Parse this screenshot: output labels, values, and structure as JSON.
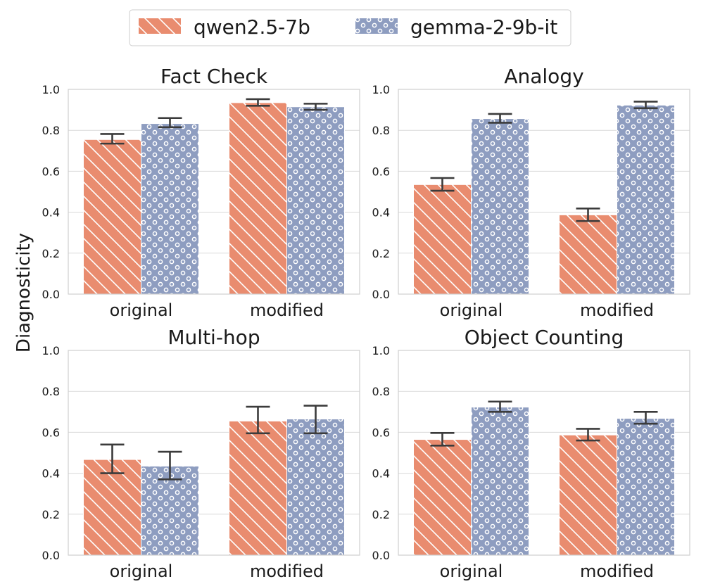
{
  "colors": {
    "qwen": "#e98c6f",
    "gemma": "#8e9dc0",
    "hatch": "#ffffff",
    "errorbar": "#3b3b3b"
  },
  "legend": [
    {
      "name": "qwen2.5-7b",
      "pattern": "diagonal-hatch"
    },
    {
      "name": "gemma-2-9b-it",
      "pattern": "circles"
    }
  ],
  "figure": {
    "ylabel": "Diagnosticity"
  },
  "chart_data": [
    {
      "type": "bar",
      "title": "Fact Check",
      "categories": [
        "original",
        "modified"
      ],
      "ylim": [
        0,
        1.0
      ],
      "yticks": [
        "0.0",
        "0.2",
        "0.4",
        "0.6",
        "0.8",
        "1.0"
      ],
      "series": [
        {
          "name": "qwen2.5-7b",
          "values": [
            0.755,
            0.935
          ],
          "err_low": [
            0.735,
            0.92
          ],
          "err_high": [
            0.782,
            0.952
          ]
        },
        {
          "name": "gemma-2-9b-it",
          "values": [
            0.833,
            0.915
          ],
          "err_low": [
            0.815,
            0.9
          ],
          "err_high": [
            0.86,
            0.93
          ]
        }
      ]
    },
    {
      "type": "bar",
      "title": "Analogy",
      "categories": [
        "original",
        "modified"
      ],
      "ylim": [
        0,
        1.0
      ],
      "yticks": [
        "0.0",
        "0.2",
        "0.4",
        "0.6",
        "0.8",
        "1.0"
      ],
      "series": [
        {
          "name": "qwen2.5-7b",
          "values": [
            0.535,
            0.387
          ],
          "err_low": [
            0.505,
            0.357
          ],
          "err_high": [
            0.567,
            0.418
          ]
        },
        {
          "name": "gemma-2-9b-it",
          "values": [
            0.857,
            0.923
          ],
          "err_low": [
            0.837,
            0.908
          ],
          "err_high": [
            0.88,
            0.94
          ]
        }
      ]
    },
    {
      "type": "bar",
      "title": "Multi-hop",
      "categories": [
        "original",
        "modified"
      ],
      "ylim": [
        0,
        1.0
      ],
      "yticks": [
        "0.0",
        "0.2",
        "0.4",
        "0.6",
        "0.8",
        "1.0"
      ],
      "series": [
        {
          "name": "qwen2.5-7b",
          "values": [
            0.467,
            0.655
          ],
          "err_low": [
            0.4,
            0.595
          ],
          "err_high": [
            0.54,
            0.725
          ]
        },
        {
          "name": "gemma-2-9b-it",
          "values": [
            0.435,
            0.665
          ],
          "err_low": [
            0.37,
            0.595
          ],
          "err_high": [
            0.505,
            0.73
          ]
        }
      ]
    },
    {
      "type": "bar",
      "title": "Object Counting",
      "categories": [
        "original",
        "modified"
      ],
      "ylim": [
        0,
        1.0
      ],
      "yticks": [
        "0.0",
        "0.2",
        "0.4",
        "0.6",
        "0.8",
        "1.0"
      ],
      "series": [
        {
          "name": "qwen2.5-7b",
          "values": [
            0.565,
            0.587
          ],
          "err_low": [
            0.535,
            0.56
          ],
          "err_high": [
            0.597,
            0.617
          ]
        },
        {
          "name": "gemma-2-9b-it",
          "values": [
            0.723,
            0.668
          ],
          "err_low": [
            0.7,
            0.642
          ],
          "err_high": [
            0.75,
            0.7
          ]
        }
      ]
    }
  ]
}
